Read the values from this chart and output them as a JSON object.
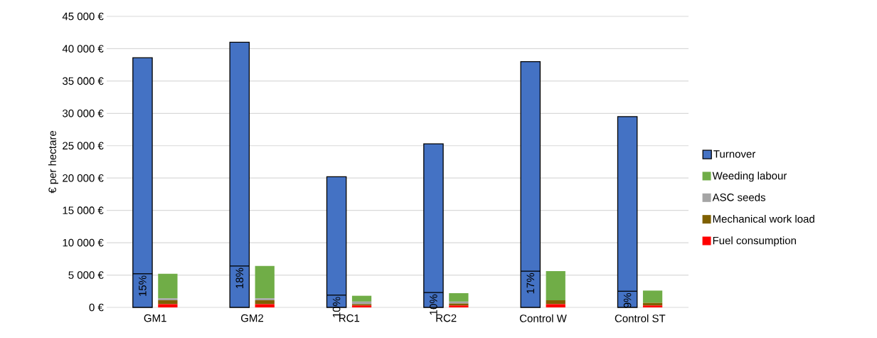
{
  "chart_data": [
    {
      "type": "bar",
      "ylabel": "€ per hectare",
      "categories": [
        "GM1",
        "GM2",
        "RC1",
        "RC2",
        "Control W",
        "Control ST"
      ],
      "series": [
        {
          "name": "Turnover",
          "color": "#4472c4",
          "values": [
            38600,
            41000,
            20200,
            25300,
            38000,
            29500
          ]
        }
      ],
      "ylim": [
        0,
        45000
      ],
      "yticks": [
        {
          "value": 0,
          "label": "0 €"
        },
        {
          "value": 5000,
          "label": "5 000 €"
        },
        {
          "value": 10000,
          "label": "10 000 €"
        },
        {
          "value": 15000,
          "label": "15 000 €"
        },
        {
          "value": 20000,
          "label": "20 000 €"
        },
        {
          "value": 25000,
          "label": "25 000 €"
        },
        {
          "value": 30000,
          "label": "30 000 €"
        },
        {
          "value": 35000,
          "label": "35 000 €"
        },
        {
          "value": 40000,
          "label": "40 000 €"
        },
        {
          "value": 45000,
          "label": "45 000 €"
        }
      ],
      "grid": "y",
      "legend": "right",
      "annotations": [
        {
          "text": "15%",
          "x": "GM1",
          "y": 5200
        },
        {
          "text": "18%",
          "x": "GM2",
          "y": 6400
        },
        {
          "text": "10%",
          "x": "RC1",
          "y": 1900
        },
        {
          "text": "10%",
          "x": "RC2",
          "y": 2300
        },
        {
          "text": "17%",
          "x": "Control W",
          "y": 5600
        },
        {
          "text": "9%",
          "x": "Control ST",
          "y": 2500
        }
      ]
    },
    {
      "type": "bar",
      "categories": [
        "GM1",
        "GM2",
        "RC1",
        "RC2",
        "Control W",
        "Control ST"
      ],
      "series": [
        {
          "name": "Fuel consumption",
          "color": "#ff0000",
          "values": [
            500,
            500,
            300,
            300,
            500,
            300
          ]
        },
        {
          "name": "Mechanical work load",
          "color": "#7f6000",
          "values": [
            600,
            600,
            200,
            300,
            600,
            400
          ]
        },
        {
          "name": "ASC seeds",
          "color": "#a5a5a5",
          "values": [
            300,
            300,
            400,
            300,
            0,
            0
          ]
        },
        {
          "name": "Weeding labour",
          "color": "#70ad47",
          "values": [
            3800,
            5000,
            900,
            1300,
            4500,
            1900
          ]
        }
      ],
      "stacked": true,
      "ylim": [
        0,
        45000
      ],
      "tick_labels": false,
      "legend": "right"
    }
  ]
}
